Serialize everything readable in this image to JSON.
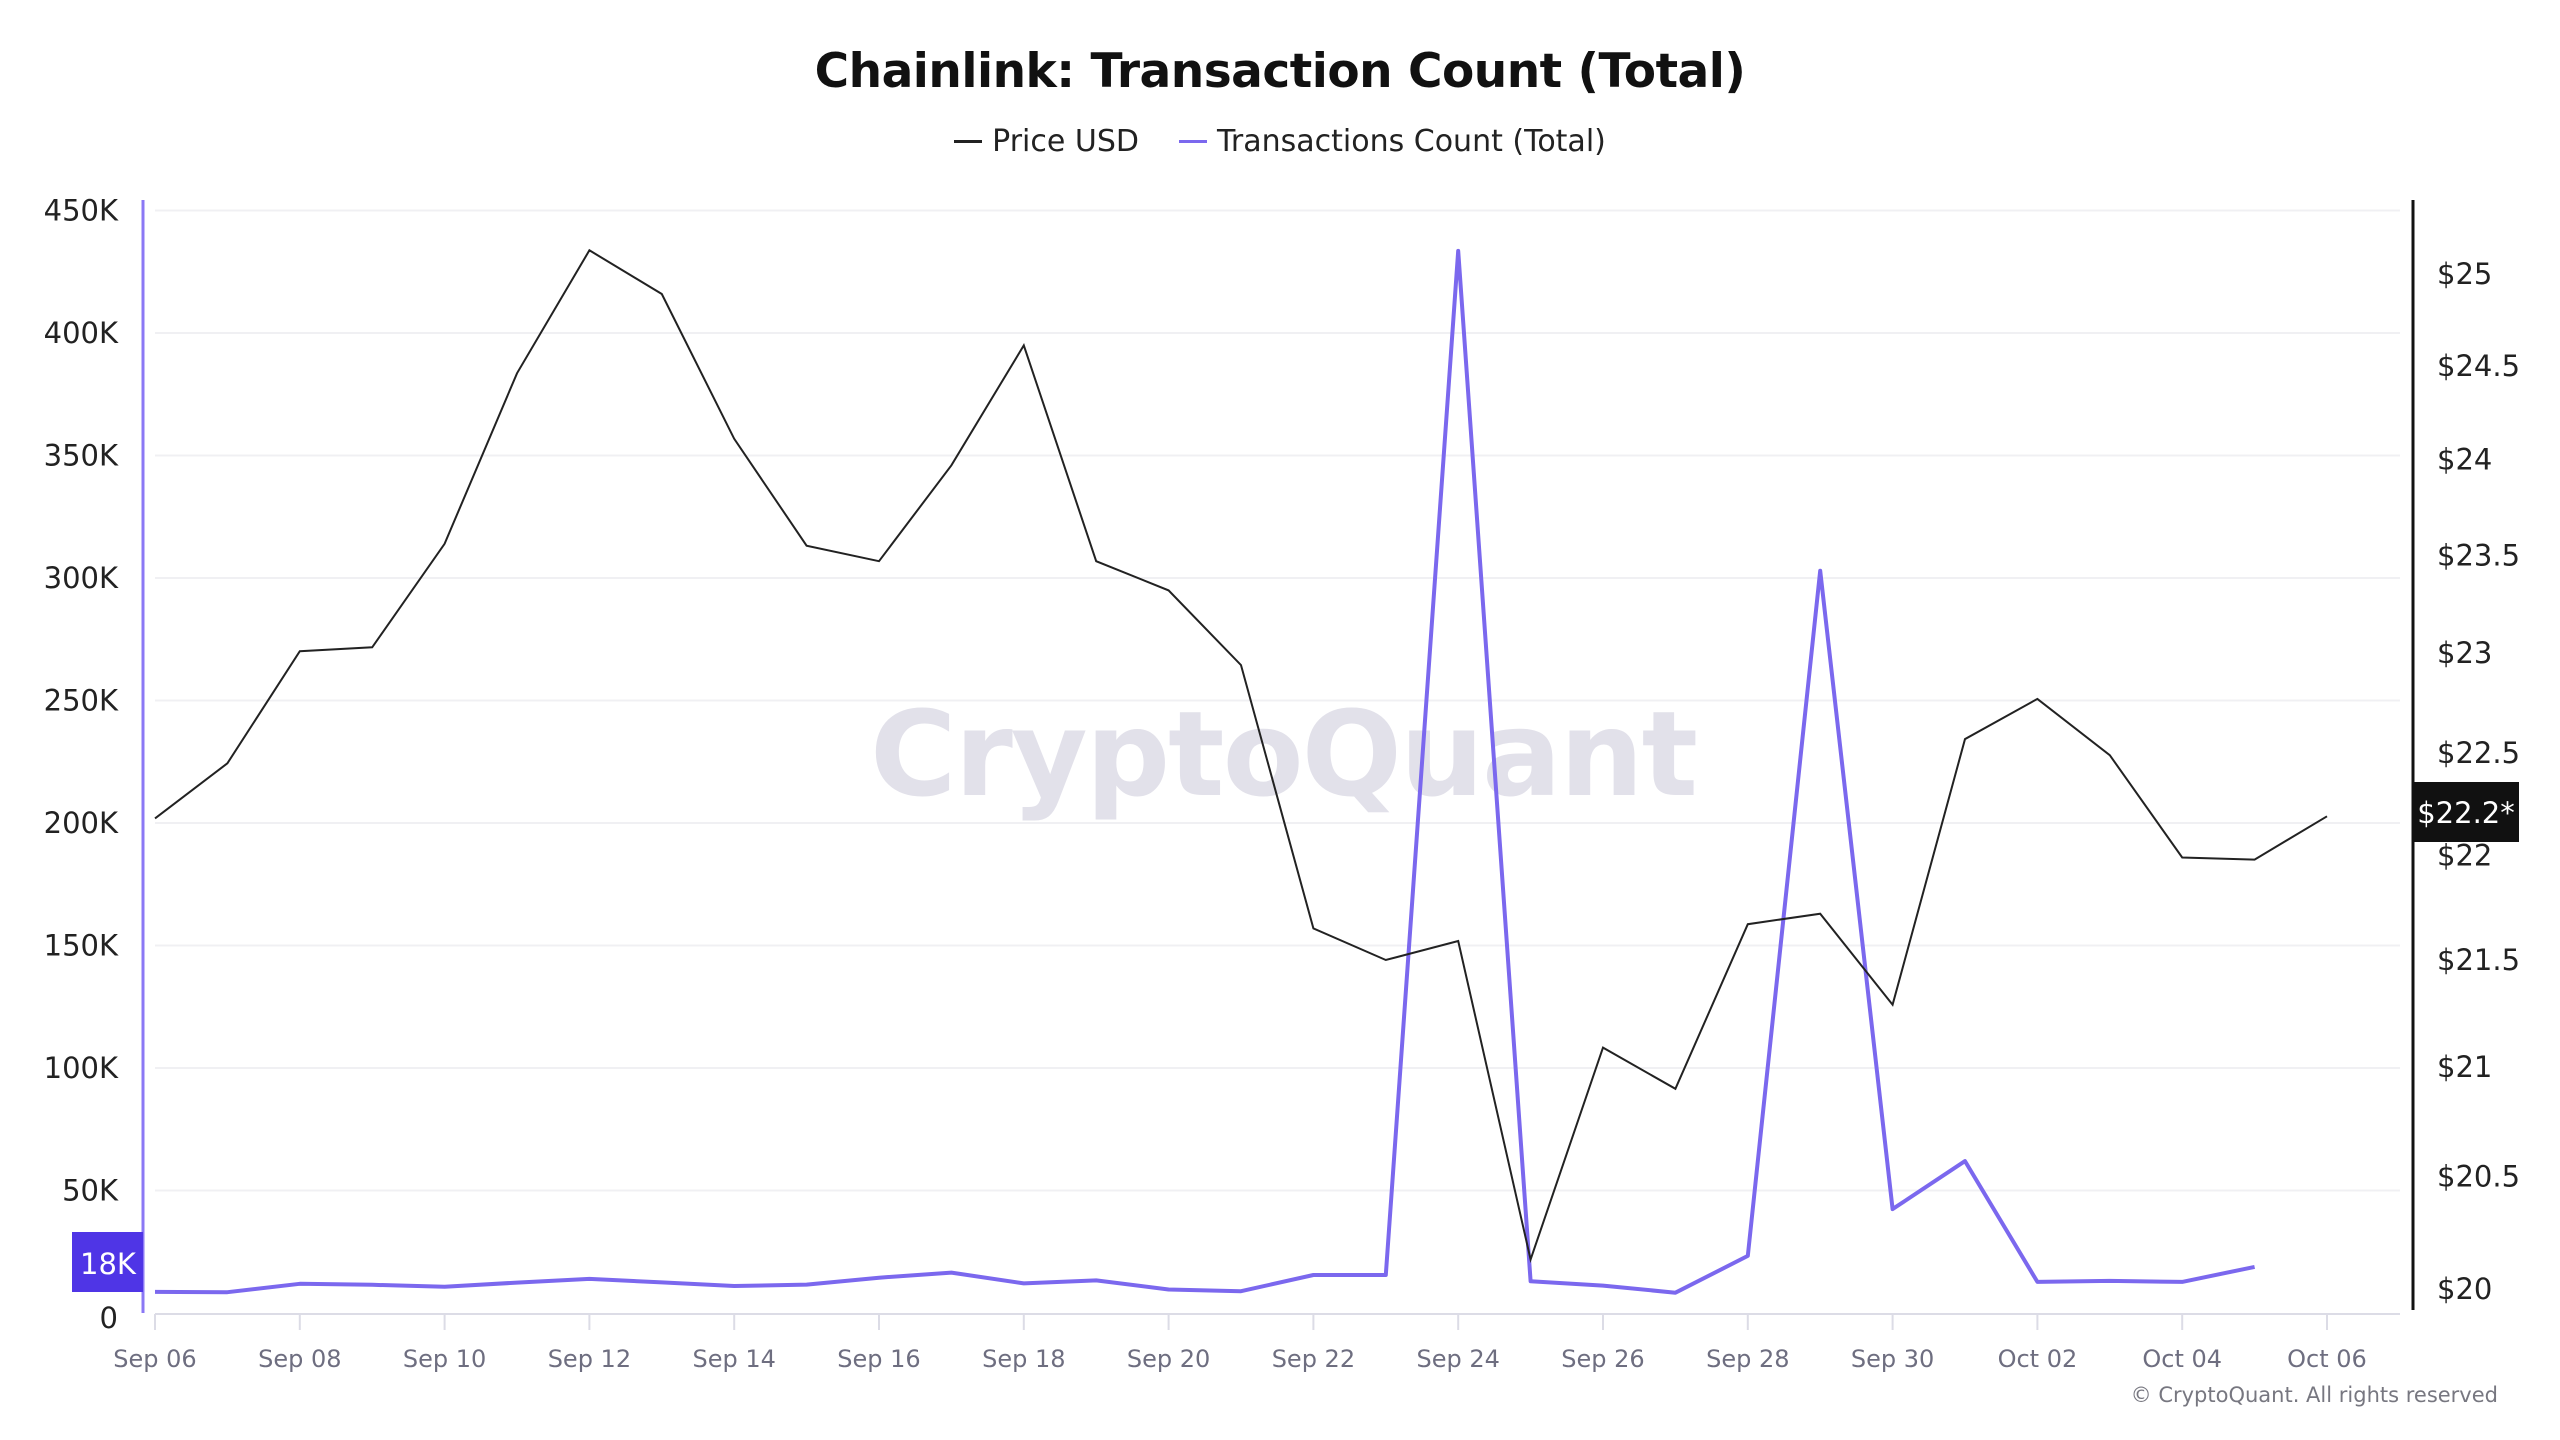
{
  "title": "Chainlink: Transaction Count (Total)",
  "legend": [
    {
      "label": "Price USD",
      "color": "#222222"
    },
    {
      "label": "Transactions Count (Total)",
      "color": "#7b68ee"
    }
  ],
  "watermark": "CryptoQuant",
  "copyright": "© CryptoQuant. All rights reserved",
  "left_axis": {
    "ticks": [
      "0",
      "50K",
      "100K",
      "150K",
      "200K",
      "250K",
      "300K",
      "350K",
      "400K",
      "450K"
    ],
    "tick_values": [
      0,
      50000,
      100000,
      150000,
      200000,
      250000,
      300000,
      350000,
      400000,
      450000
    ],
    "current_badge": "18K",
    "color": "#8b78f5",
    "badge_color": "#4f35e6"
  },
  "right_axis": {
    "ticks": [
      "$20",
      "$20.5",
      "$21",
      "$21.5",
      "$22",
      "$22.5",
      "$23",
      "$23.5",
      "$24",
      "$24.5",
      "$25"
    ],
    "tick_values": [
      20,
      20.5,
      21,
      21.5,
      22,
      22.5,
      23,
      23.5,
      24,
      24.5,
      25
    ],
    "current_badge": "$22.2*",
    "color": "#111111"
  },
  "x_axis": {
    "labels": [
      "Sep 06",
      "Sep 08",
      "Sep 10",
      "Sep 12",
      "Sep 14",
      "Sep 16",
      "Sep 18",
      "Sep 20",
      "Sep 22",
      "Sep 24",
      "Sep 26",
      "Sep 28",
      "Sep 30",
      "Oct 02",
      "Oct 04",
      "Oct 06"
    ]
  },
  "chart_data": {
    "type": "line",
    "title": "Chainlink: Transaction Count (Total)",
    "xlabel": "",
    "ylabel_left": "Transactions Count (Total)",
    "ylabel_right": "Price USD",
    "ylim_left": [
      0,
      450000
    ],
    "ylim_right": [
      20,
      25.3
    ],
    "right_axis_scale": "log",
    "grid": true,
    "legend_position": "top",
    "x": [
      "Sep 06",
      "Sep 07",
      "Sep 08",
      "Sep 09",
      "Sep 10",
      "Sep 11",
      "Sep 12",
      "Sep 13",
      "Sep 14",
      "Sep 15",
      "Sep 16",
      "Sep 17",
      "Sep 18",
      "Sep 19",
      "Sep 20",
      "Sep 21",
      "Sep 22",
      "Sep 23",
      "Sep 24",
      "Sep 25",
      "Sep 26",
      "Sep 27",
      "Sep 28",
      "Sep 29",
      "Sep 30",
      "Oct 01",
      "Oct 02",
      "Oct 03",
      "Oct 04",
      "Oct 05",
      "Oct 06"
    ],
    "series": [
      {
        "name": "Price USD",
        "axis": "right",
        "color": "#222222",
        "values": [
          22.18,
          22.45,
          23.01,
          23.03,
          23.56,
          24.46,
          25.13,
          24.89,
          24.11,
          23.55,
          23.47,
          23.97,
          24.61,
          23.47,
          23.32,
          22.94,
          21.65,
          21.5,
          21.59,
          20.13,
          21.09,
          20.9,
          21.67,
          21.72,
          21.29,
          22.57,
          22.77,
          22.49,
          21.99,
          21.98,
          22.19
        ]
      },
      {
        "name": "Transactions Count (Total)",
        "axis": "left",
        "color": "#7b68ee",
        "values": [
          8600,
          8500,
          11900,
          11500,
          10700,
          12400,
          13900,
          12500,
          11000,
          11600,
          14400,
          16500,
          12100,
          13300,
          9600,
          8900,
          15500,
          15500,
          433500,
          13000,
          11200,
          8300,
          23300,
          303000,
          42400,
          62000,
          12700,
          13100,
          12700,
          18800,
          null
        ]
      }
    ]
  }
}
